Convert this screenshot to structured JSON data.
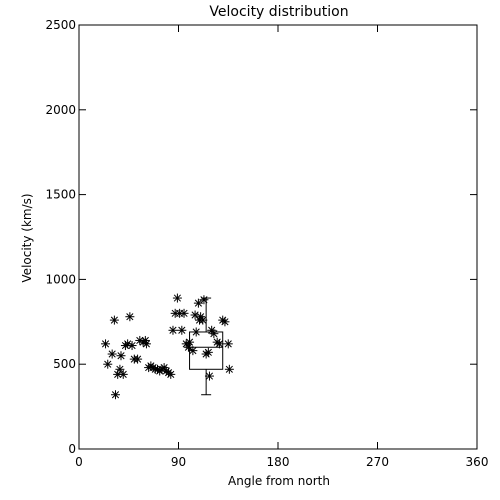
{
  "chart_data": {
    "type": "scatter",
    "title": "Velocity distribution",
    "xlabel": "Angle from north",
    "ylabel": "Velocity (km/s)",
    "xlim": [
      0,
      360
    ],
    "ylim": [
      0,
      2500
    ],
    "xticks": [
      0,
      90,
      180,
      270,
      360
    ],
    "yticks": [
      0,
      500,
      1000,
      1500,
      2000,
      2500
    ],
    "xtick_labels": [
      "0",
      "90",
      "180",
      "270",
      "360"
    ],
    "ytick_labels": [
      "0",
      "500",
      "1000",
      "1500",
      "2000",
      "2500"
    ],
    "grid": false,
    "marker": "asterisk",
    "points": [
      {
        "x": 24,
        "y": 620
      },
      {
        "x": 26,
        "y": 500
      },
      {
        "x": 30,
        "y": 560
      },
      {
        "x": 32,
        "y": 760
      },
      {
        "x": 33,
        "y": 320
      },
      {
        "x": 35,
        "y": 440
      },
      {
        "x": 37,
        "y": 470
      },
      {
        "x": 38,
        "y": 550
      },
      {
        "x": 40,
        "y": 440
      },
      {
        "x": 42,
        "y": 610
      },
      {
        "x": 44,
        "y": 620
      },
      {
        "x": 46,
        "y": 780
      },
      {
        "x": 48,
        "y": 610
      },
      {
        "x": 50,
        "y": 530
      },
      {
        "x": 53,
        "y": 530
      },
      {
        "x": 55,
        "y": 640
      },
      {
        "x": 58,
        "y": 630
      },
      {
        "x": 60,
        "y": 640
      },
      {
        "x": 61,
        "y": 620
      },
      {
        "x": 63,
        "y": 480
      },
      {
        "x": 65,
        "y": 490
      },
      {
        "x": 67,
        "y": 480
      },
      {
        "x": 69,
        "y": 470
      },
      {
        "x": 71,
        "y": 470
      },
      {
        "x": 73,
        "y": 460
      },
      {
        "x": 75,
        "y": 470
      },
      {
        "x": 77,
        "y": 480
      },
      {
        "x": 79,
        "y": 460
      },
      {
        "x": 81,
        "y": 450
      },
      {
        "x": 83,
        "y": 440
      },
      {
        "x": 85,
        "y": 700
      },
      {
        "x": 87,
        "y": 800
      },
      {
        "x": 89,
        "y": 890
      },
      {
        "x": 91,
        "y": 800
      },
      {
        "x": 93,
        "y": 700
      },
      {
        "x": 95,
        "y": 800
      },
      {
        "x": 97,
        "y": 620
      },
      {
        "x": 99,
        "y": 600
      },
      {
        "x": 100,
        "y": 630
      },
      {
        "x": 103,
        "y": 580
      },
      {
        "x": 105,
        "y": 790
      },
      {
        "x": 106,
        "y": 690
      },
      {
        "x": 108,
        "y": 860
      },
      {
        "x": 109,
        "y": 760
      },
      {
        "x": 110,
        "y": 780
      },
      {
        "x": 112,
        "y": 760
      },
      {
        "x": 113,
        "y": 880
      },
      {
        "x": 115,
        "y": 560
      },
      {
        "x": 117,
        "y": 570
      },
      {
        "x": 118,
        "y": 430
      },
      {
        "x": 120,
        "y": 700
      },
      {
        "x": 122,
        "y": 680
      },
      {
        "x": 125,
        "y": 630
      },
      {
        "x": 127,
        "y": 620
      },
      {
        "x": 130,
        "y": 760
      },
      {
        "x": 132,
        "y": 750
      },
      {
        "x": 135,
        "y": 620
      },
      {
        "x": 136,
        "y": 470
      }
    ],
    "boxplot": {
      "x_left": 100,
      "x_right": 130,
      "x_center": 115,
      "whisker_low": 320,
      "q1": 470,
      "median": 600,
      "q3": 690,
      "whisker_high": 890
    }
  }
}
